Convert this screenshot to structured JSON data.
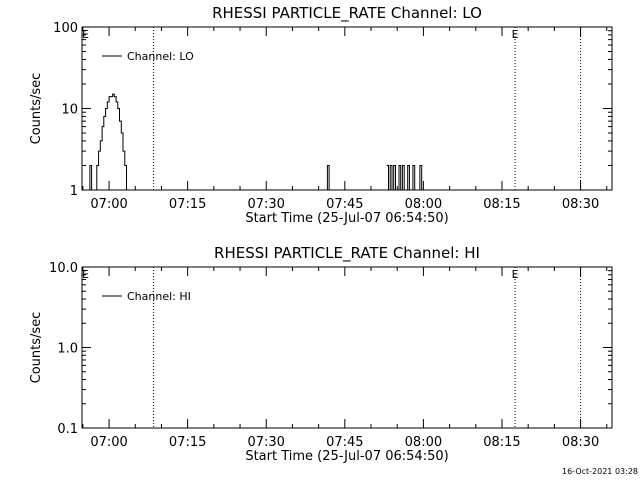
{
  "footer": "16-Oct-2021 03:28",
  "chart_data": [
    {
      "type": "line",
      "title": "RHESSI PARTICLE_RATE Channel: LO",
      "xlabel": "Start Time (25-Jul-07 06:54:50)",
      "ylabel": "Counts/sec",
      "yscale": "log",
      "ylim": [
        1,
        100
      ],
      "yticks": [
        "1",
        "10",
        "100"
      ],
      "xlim": [
        "06:54:50",
        "08:36:00"
      ],
      "xticks": [
        "07:00",
        "07:15",
        "07:30",
        "07:45",
        "08:00",
        "08:15",
        "08:30"
      ],
      "legend": "Channel: LO",
      "legend_position": "top-left",
      "event_markers": [
        {
          "time": "06:55:30",
          "label": "E"
        },
        {
          "time": "08:17:30",
          "label": "E"
        }
      ],
      "dotted_lines": [
        "07:08:30",
        "08:17:30",
        "08:30:00"
      ],
      "series": [
        {
          "name": "Channel: LO",
          "x": [
            "06:55:30",
            "06:56:00",
            "06:56:20",
            "06:56:40",
            "06:57:00",
            "06:57:20",
            "06:57:40",
            "06:58:00",
            "06:58:20",
            "06:58:40",
            "06:59:00",
            "06:59:20",
            "06:59:40",
            "07:00:00",
            "07:00:20",
            "07:00:40",
            "07:01:00",
            "07:01:20",
            "07:01:40",
            "07:02:00",
            "07:02:20",
            "07:02:40",
            "07:03:00",
            "07:03:20",
            "07:03:40",
            "07:04:00",
            "07:04:20",
            "07:04:40",
            "07:05:00",
            "07:05:20",
            "07:05:40",
            "07:06:00",
            "07:06:20",
            "07:06:40",
            "07:07:00",
            "07:07:20",
            "07:07:40",
            "07:08:00",
            "07:41:20",
            "07:41:40",
            "07:42:00",
            "07:42:20",
            "07:53:00",
            "07:53:20",
            "07:53:40",
            "07:54:00",
            "07:54:20",
            "07:54:40",
            "07:55:00",
            "07:55:20",
            "07:55:40",
            "07:56:00",
            "07:56:20",
            "07:56:40",
            "07:57:00",
            "07:57:20",
            "07:57:40",
            "07:58:00",
            "07:58:20",
            "07:58:40",
            "07:59:00",
            "07:59:20",
            "07:59:40",
            "08:00:00"
          ],
          "y": [
            1,
            1,
            2,
            1,
            1,
            1,
            2,
            3,
            4,
            6,
            8,
            10,
            12,
            14,
            14,
            15,
            14,
            12,
            10,
            7,
            5,
            3,
            2,
            1,
            1,
            1,
            1,
            1,
            1,
            1,
            1,
            1,
            1,
            1,
            1,
            1,
            1,
            1,
            1,
            2,
            1,
            1,
            2,
            1,
            2,
            1,
            2,
            1,
            1,
            2,
            1,
            2,
            1,
            1,
            2,
            1,
            1,
            2,
            1,
            1,
            1,
            2,
            1,
            1
          ]
        }
      ]
    },
    {
      "type": "line",
      "title": "RHESSI PARTICLE_RATE Channel: HI",
      "xlabel": "Start Time (25-Jul-07 06:54:50)",
      "ylabel": "Counts/sec",
      "yscale": "log",
      "ylim": [
        0.1,
        10
      ],
      "yticks": [
        "0.1",
        "1.0",
        "10.0"
      ],
      "xlim": [
        "06:54:50",
        "08:36:00"
      ],
      "xticks": [
        "07:00",
        "07:15",
        "07:30",
        "07:45",
        "08:00",
        "08:15",
        "08:30"
      ],
      "legend": "Channel: HI",
      "legend_position": "top-left",
      "event_markers": [
        {
          "time": "06:55:30",
          "label": "E"
        },
        {
          "time": "08:17:30",
          "label": "E"
        }
      ],
      "dotted_lines": [
        "07:08:30",
        "08:17:30",
        "08:30:00"
      ],
      "series": [
        {
          "name": "Channel: HI",
          "x": [],
          "y": []
        }
      ]
    }
  ]
}
